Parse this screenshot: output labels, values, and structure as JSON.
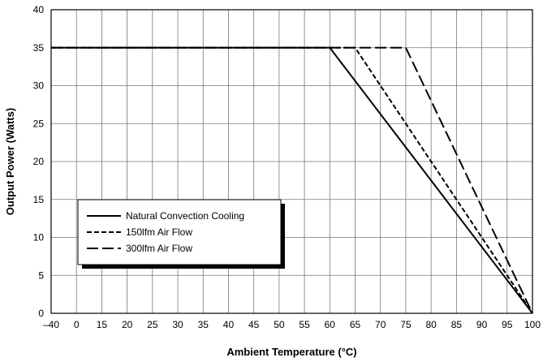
{
  "chart_data": {
    "type": "line",
    "xlabel": "Ambient Temperature (°C)",
    "ylabel": "Output Power (Watts)",
    "x_tick_labels": [
      "–40",
      "0",
      "15",
      "20",
      "25",
      "30",
      "35",
      "40",
      "45",
      "50",
      "55",
      "60",
      "65",
      "70",
      "75",
      "80",
      "85",
      "90",
      "95",
      "100"
    ],
    "x_tick_values": [
      -40,
      0,
      15,
      20,
      25,
      30,
      35,
      40,
      45,
      50,
      55,
      60,
      65,
      70,
      75,
      80,
      85,
      90,
      95,
      100
    ],
    "y_tick_labels": [
      "0",
      "5",
      "10",
      "15",
      "20",
      "25",
      "30",
      "35",
      "40"
    ],
    "ylim": [
      0,
      40
    ],
    "grid": true,
    "legend_position": "lower-left",
    "series": [
      {
        "name": "Natural Convection Cooling",
        "dash": "solid",
        "x": [
          -40,
          60,
          100
        ],
        "y": [
          35,
          35,
          0
        ]
      },
      {
        "name": "150lfm Air Flow",
        "dash": "short-dash",
        "x": [
          -40,
          65,
          100
        ],
        "y": [
          35,
          35,
          0
        ]
      },
      {
        "name": "300lfm Air Flow",
        "dash": "long-dash",
        "x": [
          -40,
          75,
          100
        ],
        "y": [
          35,
          35,
          0
        ]
      }
    ]
  }
}
